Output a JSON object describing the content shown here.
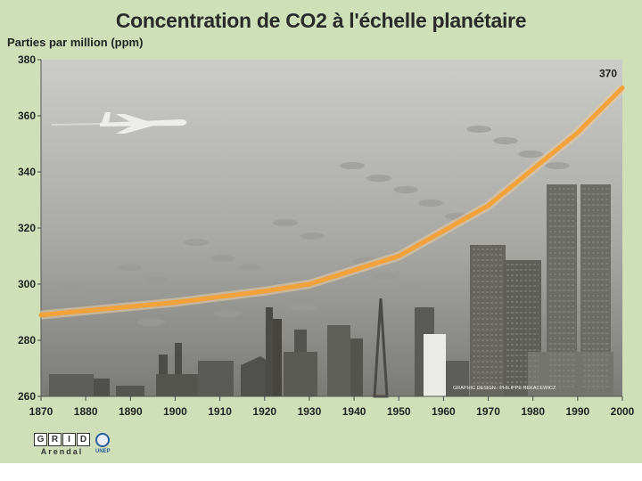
{
  "chart_data": {
    "type": "line",
    "title": "Concentration de CO2 à l'échelle planétaire",
    "ylabel": "Parties par million (ppm)",
    "xlabel": "",
    "x": [
      1870,
      1880,
      1890,
      1900,
      1910,
      1920,
      1930,
      1940,
      1950,
      1960,
      1970,
      1980,
      1990,
      2000
    ],
    "series": [
      {
        "values": [
          289,
          290.5,
          292,
          293.5,
          295.5,
          297.5,
          300,
          305,
          310,
          319,
          328,
          341,
          354,
          370
        ]
      }
    ],
    "xlim": [
      1870,
      2000
    ],
    "ylim": [
      260,
      380
    ],
    "y_ticks": [
      260,
      280,
      300,
      320,
      340,
      360,
      380
    ],
    "x_tick_labels": [
      "1870",
      "1880",
      "1890",
      "1900",
      "1910",
      "1920",
      "1930",
      "1940",
      "1950",
      "1960",
      "1970",
      "1980",
      "1990",
      "2000"
    ],
    "y_tick_labels": [
      "260",
      "280",
      "300",
      "320",
      "340",
      "360",
      "380"
    ],
    "annotations": [
      {
        "text": "370",
        "x": 2000,
        "y": 370
      }
    ],
    "line_color": "#f2a23a",
    "grid": false
  },
  "credit": "GRAPHIC DESIGN : PHILIPPE REKACEWICZ",
  "logos": {
    "grid_letters": [
      "G",
      "R",
      "I",
      "D"
    ],
    "grid_sub": "Arendal",
    "unep_sub": "UNEP"
  },
  "colors": {
    "background": "#cfe0b8",
    "plot_top": "#c9cac6",
    "plot_bottom": "#7d7d79",
    "line": "#f2a23a"
  }
}
